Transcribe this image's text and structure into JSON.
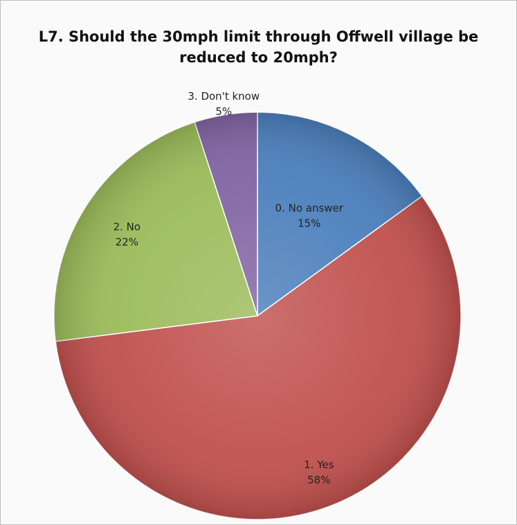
{
  "chart_data": {
    "type": "pie",
    "title": "L7. Should the 30mph limit through Offwell village be\nreduced to 20mph?",
    "start_angle_deg": 0,
    "direction": "clockwise",
    "slices": [
      {
        "label": "0. No answer",
        "value": 15,
        "value_label": "15%",
        "color": "#4A7EBB"
      },
      {
        "label": "1. Yes",
        "value": 58,
        "value_label": "58%",
        "color": "#C0504D"
      },
      {
        "label": "2. No",
        "value": 22,
        "value_label": "22%",
        "color": "#9BBB59"
      },
      {
        "label": "3. Don't know",
        "value": 5,
        "value_label": "5%",
        "color": "#8064A2"
      }
    ]
  }
}
